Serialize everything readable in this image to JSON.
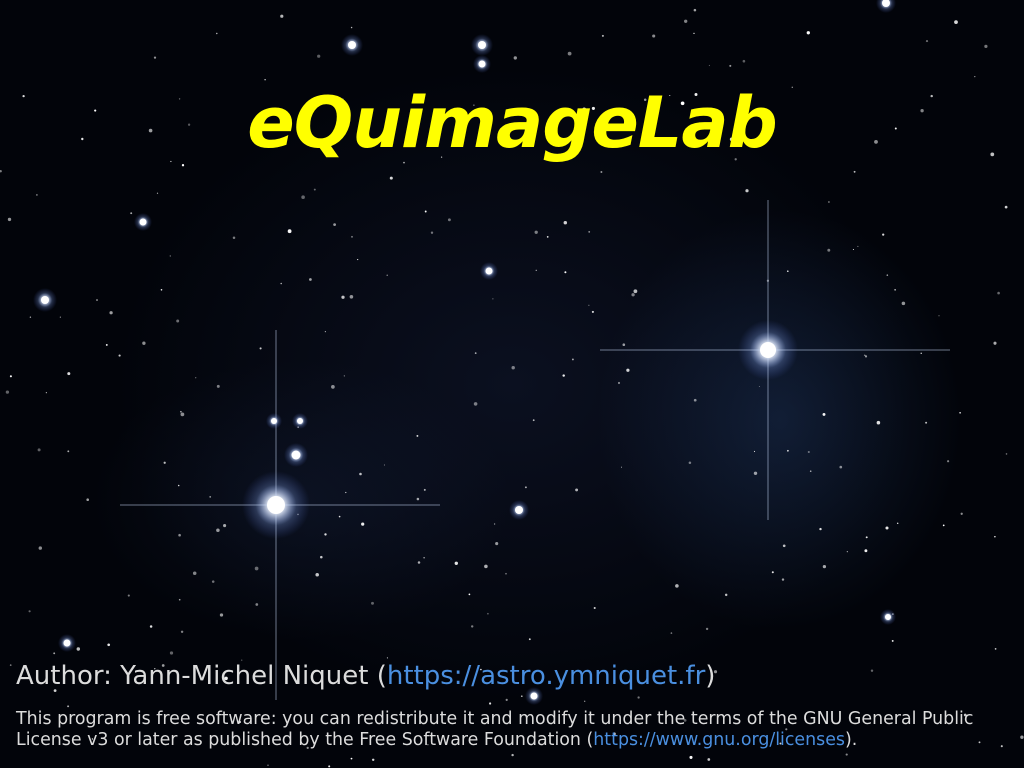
{
  "splash": {
    "title": "eQuimageLab",
    "author": {
      "prefix": "Author: ",
      "name": "Yann-Michel Niquet",
      "open_paren": " (",
      "url": "https://astro.ymniquet.fr",
      "close_paren": ")"
    },
    "license": {
      "text_before": "This program is free software: you can redistribute it and modify it under the terms of the GNU General Public License v3 or later as published by the Free Software Foundation (",
      "url": "https://www.gnu.org/licenses",
      "text_after": ")."
    },
    "colors": {
      "title": "#ffff00",
      "text": "#dcdcdc",
      "link": "#4a8fe0",
      "background": "#02040a"
    },
    "background_image": "star-field"
  }
}
